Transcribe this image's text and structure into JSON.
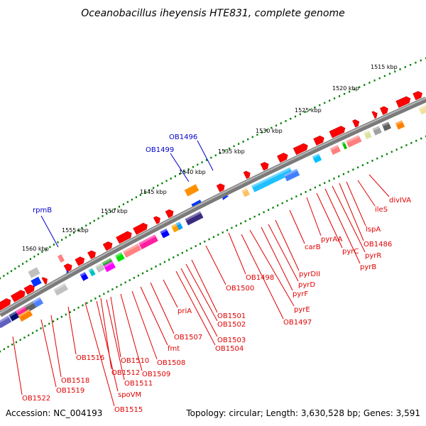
{
  "title": "Oceanobacillus iheyensis HTE831, complete genome",
  "footer": {
    "accession": "Accession: NC_004193",
    "info": "Topology: circular; Length: 3,630,528 bp; Genes: 3,591"
  },
  "colors": {
    "backbone": "#808080",
    "gene_red": "#ff0000",
    "label_red": "#e00000",
    "label_blue": "#0000cc",
    "ticks": "#008000"
  },
  "scale_labels": [
    "1515 kbp",
    "1520 kbp",
    "1525 kbp",
    "1530 kbp",
    "1535 kbp",
    "1540 kbp",
    "1545 kbp",
    "1550 kbp",
    "1555 kbp",
    "1560 kbp"
  ],
  "outer_labels": [
    {
      "text": "OB1496",
      "color": "blue"
    },
    {
      "text": "OB1499",
      "color": "blue"
    },
    {
      "text": "rpmB",
      "color": "blue"
    }
  ],
  "inner_labels": [
    "divIVA",
    "ileS",
    "lspA",
    "OB1486",
    "pyrR",
    "pyrB",
    "pyrC",
    "pyrAA",
    "carB",
    "pyrDII",
    "pyrD",
    "pyrF",
    "pyrE",
    "OB1497",
    "OB1498",
    "OB1500",
    "OB1501",
    "OB1502",
    "OB1503",
    "OB1504",
    "priA",
    "OB1507",
    "fmt",
    "OB1508",
    "OB1509",
    "OB1510",
    "OB1511",
    "OB1512",
    "spoVM",
    "OB1515",
    "OB1516",
    "OB1518",
    "OB1519",
    "OB1522"
  ]
}
